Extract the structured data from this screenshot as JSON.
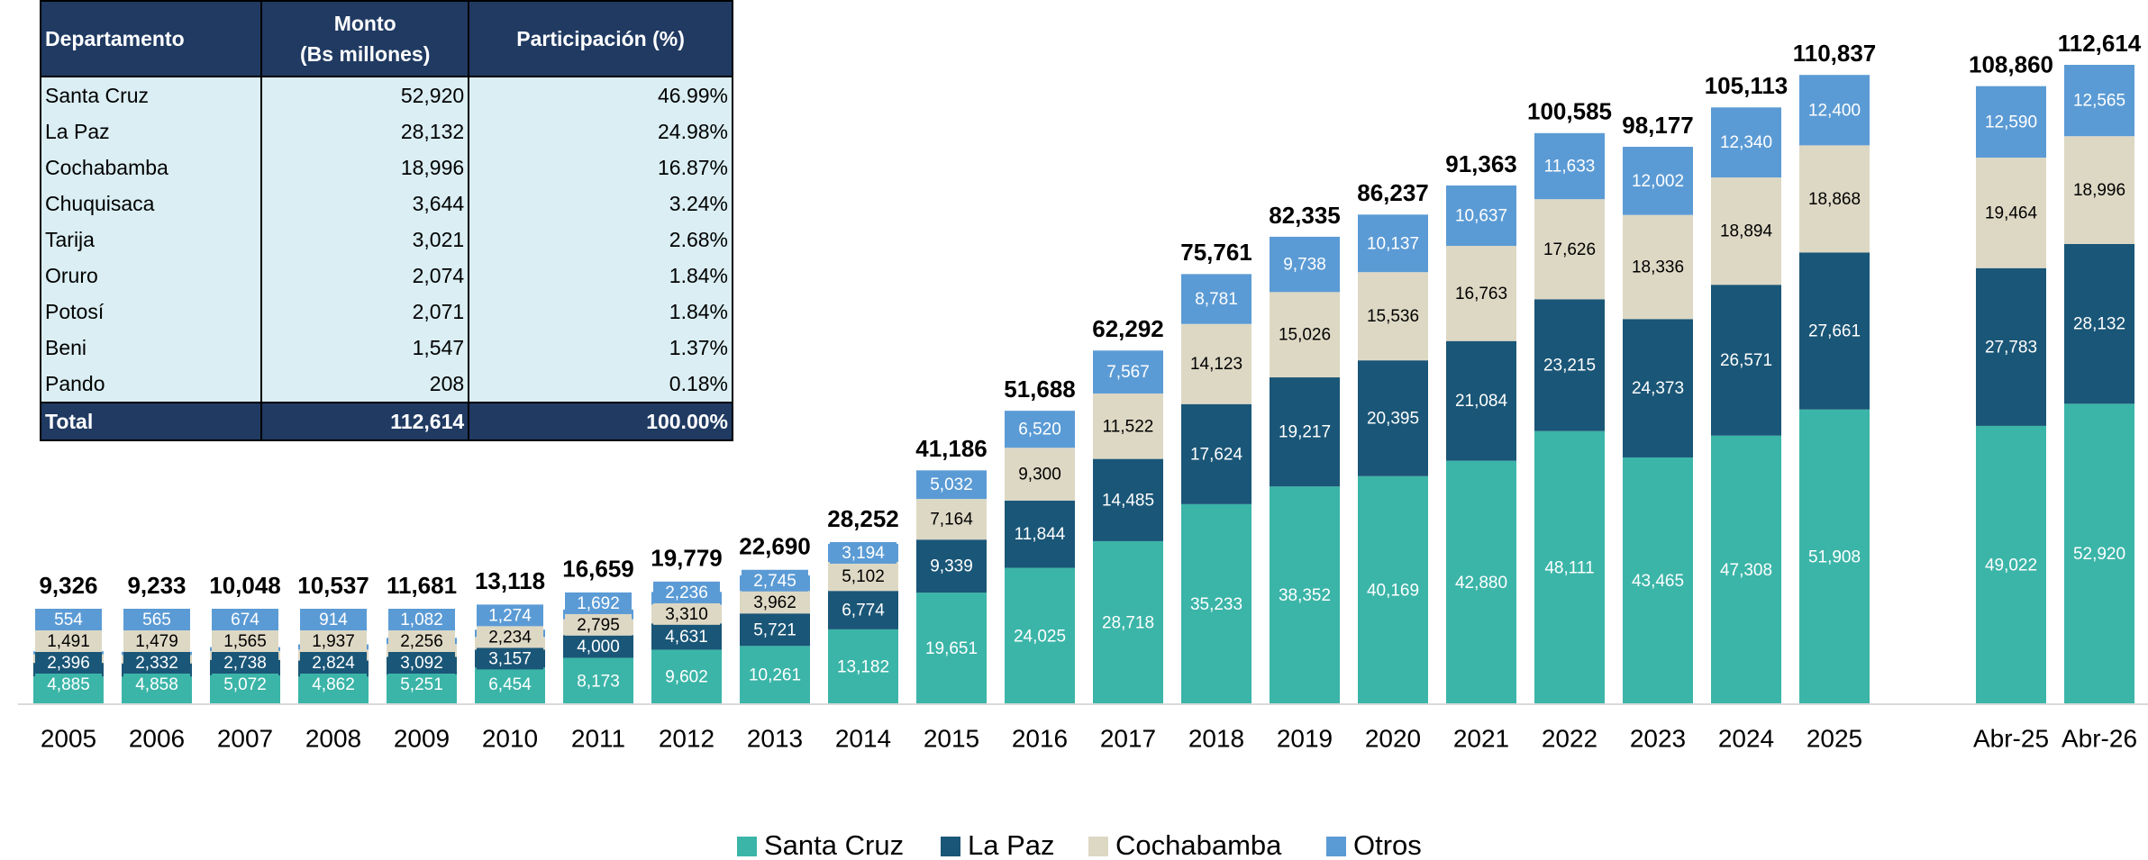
{
  "table": {
    "header": [
      "Departamento",
      "Monto\n(Bs millones)",
      "Participación (%)"
    ],
    "rows": [
      [
        "Santa Cruz",
        "52,920",
        "46.99%"
      ],
      [
        "La Paz",
        "28,132",
        "24.98%"
      ],
      [
        "Cochabamba",
        "18,996",
        "16.87%"
      ],
      [
        "Chuquisaca",
        "3,644",
        "3.24%"
      ],
      [
        "Tarija",
        "3,021",
        "2.68%"
      ],
      [
        "Oruro",
        "2,074",
        "1.84%"
      ],
      [
        "Potosí",
        "2,071",
        "1.84%"
      ],
      [
        "Beni",
        "1,547",
        "1.37%"
      ],
      [
        "Pando",
        "208",
        "0.18%"
      ]
    ],
    "total": [
      "Total",
      "112,614",
      "100.00%"
    ]
  },
  "chart_data": {
    "type": "stacked_bar",
    "categories": [
      "2005",
      "2006",
      "2007",
      "2008",
      "2009",
      "2010",
      "2011",
      "2012",
      "2013",
      "2014",
      "2015",
      "2016",
      "2017",
      "2018",
      "2019",
      "2020",
      "2021",
      "2022",
      "2023",
      "2024",
      "2025",
      null,
      "Abr-25",
      "Abr-26"
    ],
    "series": [
      {
        "name": "Santa Cruz",
        "color": "#3bb5a8",
        "values": [
          4885,
          4858,
          5072,
          4862,
          5251,
          6454,
          8173,
          9602,
          10261,
          13182,
          19651,
          24025,
          28718,
          35233,
          38352,
          40169,
          42880,
          48111,
          43465,
          47308,
          51908,
          null,
          49022,
          52920
        ],
        "value_labels": [
          "4,885",
          "4,858",
          "5,072",
          "4,862",
          "5,251",
          "6,454",
          "8,173",
          "9,602",
          "10,261",
          "13,182",
          "19,651",
          "24,025",
          "28,718",
          "35,233",
          "38,352",
          "40,169",
          "42,880",
          "48,111",
          "43,465",
          "47,308",
          "51,908",
          null,
          "49,022",
          "52,920"
        ]
      },
      {
        "name": "La Paz",
        "color": "#1a5677",
        "values": [
          2396,
          2332,
          2738,
          2824,
          3092,
          3157,
          4000,
          4631,
          5721,
          6774,
          9339,
          11844,
          14485,
          17624,
          19217,
          20395,
          21084,
          23215,
          24373,
          26571,
          27661,
          null,
          27783,
          28132
        ],
        "value_labels": [
          "2,396",
          "2,332",
          "2,738",
          "2,824",
          "3,092",
          "3,157",
          "4,000",
          "4,631",
          "5,721",
          "6,774",
          "9,339",
          "11,844",
          "14,485",
          "17,624",
          "19,217",
          "20,395",
          "21,084",
          "23,215",
          "24,373",
          "26,571",
          "27,661",
          null,
          "27,783",
          "28,132"
        ]
      },
      {
        "name": "Cochabamba",
        "color": "#ddd8c4",
        "values": [
          1491,
          1479,
          1565,
          1937,
          2256,
          2234,
          2795,
          3310,
          3962,
          5102,
          7164,
          9300,
          11522,
          14123,
          15026,
          15536,
          16763,
          17626,
          18336,
          18894,
          18868,
          null,
          19464,
          18996
        ],
        "value_labels": [
          "1,491",
          "1,479",
          "1,565",
          "1,937",
          "2,256",
          "2,234",
          "2,795",
          "3,310",
          "3,962",
          "5,102",
          "7,164",
          "9,300",
          "11,522",
          "14,123",
          "15,026",
          "15,536",
          "16,763",
          "17,626",
          "18,336",
          "18,894",
          "18,868",
          null,
          "19,464",
          "18,996"
        ]
      },
      {
        "name": "Otros",
        "color": "#5b9bd5",
        "values": [
          554,
          565,
          674,
          914,
          1082,
          1274,
          1692,
          2236,
          2745,
          3194,
          5032,
          6520,
          7567,
          8781,
          9738,
          10137,
          10637,
          11633,
          12002,
          12340,
          12400,
          null,
          12590,
          12565
        ],
        "value_labels": [
          "554",
          "565",
          "674",
          "914",
          "1,082",
          "1,274",
          "1,692",
          "2,236",
          "2,745",
          "3,194",
          "5,032",
          "6,520",
          "7,567",
          "8,781",
          "9,738",
          "10,137",
          "10,637",
          "11,633",
          "12,002",
          "12,340",
          "12,400",
          null,
          "12,590",
          "12,565"
        ]
      }
    ],
    "totals": [
      9326,
      9233,
      10048,
      10537,
      11681,
      13118,
      16659,
      19779,
      22690,
      28252,
      41186,
      51688,
      62292,
      75761,
      82335,
      86237,
      91363,
      100585,
      98177,
      105113,
      110837,
      null,
      108860,
      112614
    ],
    "totals_labels": [
      "9,326",
      "9,233",
      "10,048",
      "10,537",
      "11,681",
      "13,118",
      "16,659",
      "19,779",
      "22,690",
      "28,252",
      "41,186",
      "51,688",
      "62,292",
      "75,761",
      "82,335",
      "86,237",
      "91,363",
      "100,585",
      "98,177",
      "105,113",
      "110,837",
      null,
      "108,860",
      "112,614"
    ],
    "legend": "bottom"
  }
}
